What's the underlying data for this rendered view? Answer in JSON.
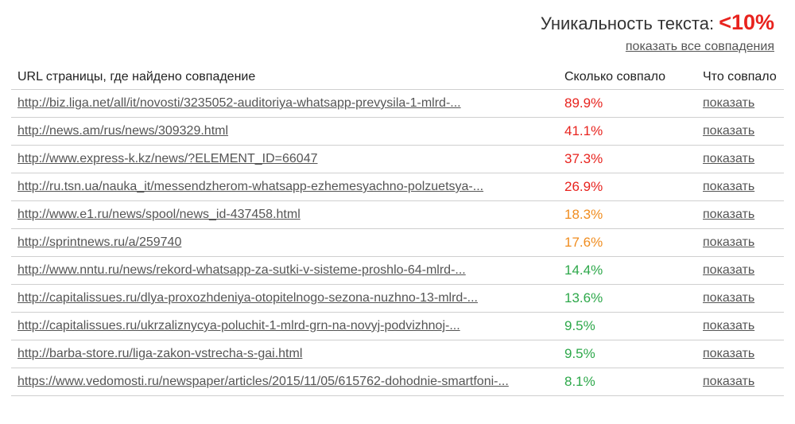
{
  "header": {
    "uniqueness_label": "Уникальность текста:",
    "uniqueness_value": "<10%",
    "show_all_link": "показать все совпадения"
  },
  "colors": {
    "high": "#e8231e",
    "medium": "#f08c1e",
    "low": "#2da84a"
  },
  "table": {
    "columns": [
      "URL страницы, где найдено совпадение",
      "Сколько совпало",
      "Что совпало"
    ],
    "rows": [
      {
        "url": "http://biz.liga.net/all/it/novosti/3235052-auditoriya-whatsapp-prevysila-1-mlrd-...",
        "percent": "89.9%",
        "level": "high",
        "action": "показать"
      },
      {
        "url": "http://news.am/rus/news/309329.html",
        "percent": "41.1%",
        "level": "high",
        "action": "показать"
      },
      {
        "url": "http://www.express-k.kz/news/?ELEMENT_ID=66047",
        "percent": "37.3%",
        "level": "high",
        "action": "показать"
      },
      {
        "url": "http://ru.tsn.ua/nauka_it/messendzherom-whatsapp-ezhemesyachno-polzuetsya-...",
        "percent": "26.9%",
        "level": "high",
        "action": "показать"
      },
      {
        "url": "http://www.e1.ru/news/spool/news_id-437458.html",
        "percent": "18.3%",
        "level": "medium",
        "action": "показать"
      },
      {
        "url": "http://sprintnews.ru/a/259740",
        "percent": "17.6%",
        "level": "medium",
        "action": "показать"
      },
      {
        "url": "http://www.nntu.ru/news/rekord-whatsapp-za-sutki-v-sisteme-proshlo-64-mlrd-...",
        "percent": "14.4%",
        "level": "low",
        "action": "показать"
      },
      {
        "url": "http://capitalissues.ru/dlya-proxozhdeniya-otopitelnogo-sezona-nuzhno-13-mlrd-...",
        "percent": "13.6%",
        "level": "low",
        "action": "показать"
      },
      {
        "url": "http://capitalissues.ru/ukrzaliznycya-poluchit-1-mlrd-grn-na-novyj-podvizhnoj-...",
        "percent": "9.5%",
        "level": "low",
        "action": "показать"
      },
      {
        "url": "http://barba-store.ru/liga-zakon-vstrecha-s-gai.html",
        "percent": "9.5%",
        "level": "low",
        "action": "показать"
      },
      {
        "url": "https://www.vedomosti.ru/newspaper/articles/2015/11/05/615762-dohodnie-smartfoni-...",
        "percent": "8.1%",
        "level": "low",
        "action": "показать"
      }
    ]
  }
}
